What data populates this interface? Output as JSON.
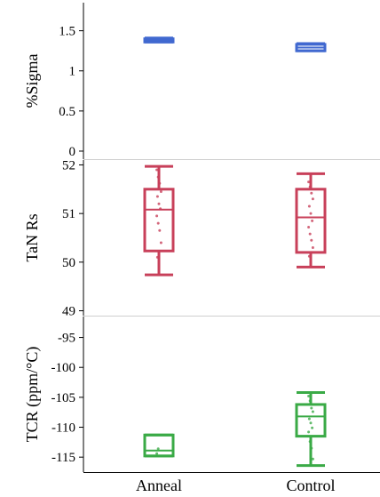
{
  "categories": [
    "Anneal",
    "Control"
  ],
  "chart_data": [
    {
      "type": "box",
      "ylabel": "%Sigma",
      "ylim": [
        -0.1,
        1.85
      ],
      "yticks": [
        0,
        0.5,
        1,
        1.5
      ],
      "ytick_labels": [
        "0",
        "0.5",
        "1",
        "1.5"
      ],
      "color": "#4169d0",
      "boxes": [
        {
          "category": "Anneal",
          "min": 1.36,
          "q1": 1.36,
          "median": 1.38,
          "q3": 1.4,
          "max": 1.41,
          "points": []
        },
        {
          "category": "Control",
          "min": 1.25,
          "q1": 1.25,
          "median": 1.29,
          "q3": 1.33,
          "max": 1.34,
          "points": []
        }
      ]
    },
    {
      "type": "box",
      "ylabel": "TaN Rs",
      "ylim": [
        48.9,
        52.1
      ],
      "yticks": [
        49,
        50,
        51,
        52
      ],
      "ytick_labels": [
        "49",
        "50",
        "51",
        "52"
      ],
      "color": "#c8405a",
      "boxes": [
        {
          "category": "Anneal",
          "min": 49.74,
          "q1": 50.23,
          "median": 51.08,
          "q3": 51.5,
          "max": 51.97,
          "points": [
            51.9,
            51.75,
            51.62,
            51.45,
            51.35,
            51.2,
            51.1,
            50.95,
            50.8,
            50.65,
            50.4,
            50.1,
            49.95
          ]
        },
        {
          "category": "Control",
          "min": 49.9,
          "q1": 50.2,
          "median": 50.92,
          "q3": 51.5,
          "max": 51.82,
          "points": [
            51.65,
            51.55,
            51.42,
            51.3,
            51.15,
            51.0,
            50.85,
            50.72,
            50.58,
            50.45,
            50.3,
            50.12,
            49.98
          ]
        }
      ]
    },
    {
      "type": "box",
      "ylabel": "TCR (ppm/°C)",
      "ylim": [
        -117.5,
        -91.5
      ],
      "yticks": [
        -95,
        -100,
        -105,
        -110,
        -115
      ],
      "ytick_labels": [
        "-95",
        "-100",
        "-105",
        "-110",
        "-115"
      ],
      "color": "#3aaa46",
      "boxes": [
        {
          "category": "Anneal",
          "min": -114.8,
          "q1": -114.8,
          "median": -113.9,
          "q3": -111.3,
          "max": -111.3,
          "points": [
            -114.4,
            -113.6
          ]
        },
        {
          "category": "Control",
          "min": -116.4,
          "q1": -111.5,
          "median": -108.2,
          "q3": -106.2,
          "max": -104.2,
          "points": [
            -104.8,
            -105.6,
            -106.8,
            -107.4,
            -108.6,
            -109.3,
            -110.1,
            -110.8,
            -112.4,
            -113.5,
            -115.3
          ]
        }
      ]
    }
  ]
}
